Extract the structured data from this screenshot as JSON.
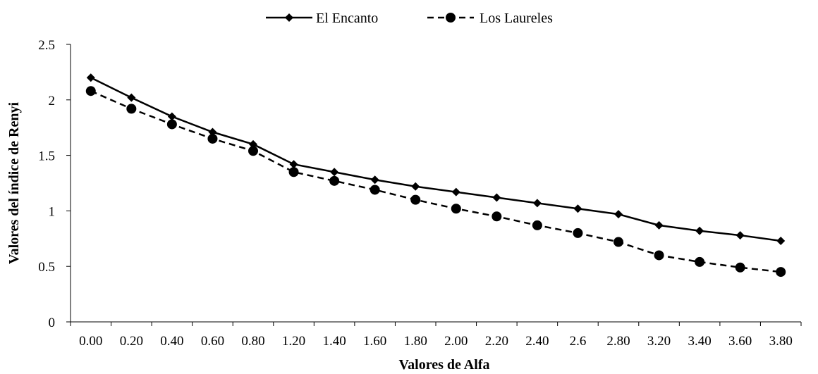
{
  "chart_data": {
    "type": "line",
    "title": "",
    "xlabel": "Valores de Alfa",
    "ylabel": "Valores del índice de Renyi",
    "categories": [
      "0.00",
      "0.20",
      "0.40",
      "0.60",
      "0.80",
      "1.20",
      "1.40",
      "1.60",
      "1.80",
      "2.00",
      "2.20",
      "2.40",
      "2.6",
      "2.80",
      "3.20",
      "3.40",
      "3.60",
      "3.80"
    ],
    "yticks": [
      "0",
      "0.5",
      "1",
      "1.5",
      "2",
      "2.5"
    ],
    "ylim": [
      0,
      2.5
    ],
    "grid": false,
    "legend_position": "top",
    "series": [
      {
        "name": "El Encanto",
        "marker": "diamond",
        "line_style": "solid",
        "color": "#000000",
        "values": [
          2.2,
          2.02,
          1.85,
          1.71,
          1.6,
          1.42,
          1.35,
          1.28,
          1.22,
          1.17,
          1.12,
          1.07,
          1.02,
          0.97,
          0.87,
          0.82,
          0.78,
          0.73
        ]
      },
      {
        "name": "Los Laureles",
        "marker": "circle",
        "line_style": "dashed",
        "color": "#000000",
        "values": [
          2.08,
          1.92,
          1.78,
          1.65,
          1.54,
          1.35,
          1.27,
          1.19,
          1.1,
          1.02,
          0.95,
          0.87,
          0.8,
          0.72,
          0.6,
          0.54,
          0.49,
          0.45
        ]
      }
    ]
  }
}
